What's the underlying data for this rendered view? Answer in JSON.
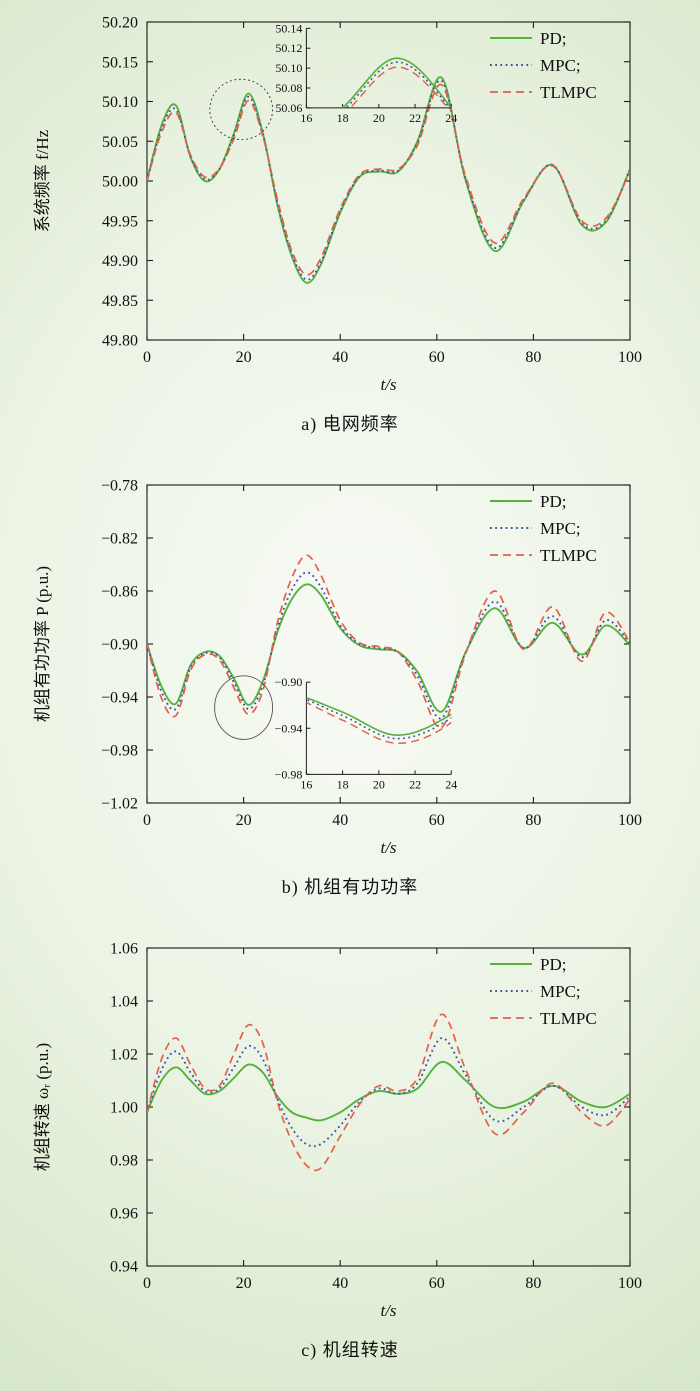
{
  "page": {
    "background_edge": "#c6dcb3",
    "background_center": "#f7faf4",
    "axis_color": "#1a1a1a",
    "text_color": "#111111"
  },
  "chart_data": [
    {
      "type": "line",
      "id": "a",
      "caption": "a) 电网频率",
      "xlabel": "t/s",
      "ylabel": "系统频率 f/Hz",
      "xlim": [
        0,
        100
      ],
      "ylim": [
        49.8,
        50.2
      ],
      "xticks": [
        0,
        20,
        40,
        60,
        80,
        100
      ],
      "yticks": [
        49.8,
        49.85,
        49.9,
        49.95,
        50.0,
        50.05,
        50.1,
        50.15,
        50.2
      ],
      "tick_decimals": 2,
      "grid": false,
      "legend_position": "top-right",
      "x": [
        0,
        3,
        6,
        9,
        12,
        15,
        18,
        21,
        24,
        27,
        30,
        33,
        36,
        40,
        44,
        48,
        52,
        56,
        61,
        66,
        72,
        78,
        84,
        90,
        95,
        100
      ],
      "series": [
        {
          "name": "PD",
          "label": "PD;",
          "color": "#56b23c",
          "dash": "solid",
          "values": [
            50.0,
            50.07,
            50.095,
            50.03,
            50.0,
            50.015,
            50.06,
            50.11,
            50.06,
            49.97,
            49.905,
            49.872,
            49.895,
            49.96,
            50.005,
            50.012,
            50.012,
            50.05,
            50.13,
            50.0,
            49.912,
            49.975,
            50.02,
            49.945,
            49.948,
            50.015
          ]
        },
        {
          "name": "MPC",
          "label": "MPC;",
          "color": "#3a53a4",
          "dash": "dotted",
          "values": [
            50.0,
            50.066,
            50.09,
            50.031,
            50.002,
            50.015,
            50.057,
            50.106,
            50.058,
            49.973,
            49.908,
            49.876,
            49.898,
            49.962,
            50.006,
            50.013,
            50.013,
            50.048,
            50.126,
            50.002,
            49.916,
            49.976,
            50.02,
            49.947,
            49.95,
            50.014
          ]
        },
        {
          "name": "TLMPC",
          "label": "TLMPC",
          "color": "#e2604c",
          "dash": "dashed",
          "values": [
            50.0,
            50.061,
            50.086,
            50.033,
            50.005,
            50.016,
            50.053,
            50.101,
            50.056,
            49.977,
            49.912,
            49.882,
            49.903,
            49.965,
            50.008,
            50.015,
            50.015,
            50.045,
            50.121,
            50.005,
            49.922,
            49.978,
            50.019,
            49.95,
            49.953,
            50.012
          ]
        }
      ],
      "inset": {
        "rect": [
          0.33,
          0.02,
          0.3,
          0.25
        ],
        "xlim": [
          16,
          24
        ],
        "ylim": [
          50.06,
          50.14
        ],
        "xticks": [
          16,
          18,
          20,
          22,
          24
        ],
        "yticks": [
          50.06,
          50.08,
          50.1,
          50.12,
          50.14
        ],
        "tick_decimals": 2
      },
      "annotation_ellipse": {
        "cx": 19.5,
        "cy": 50.09,
        "rx": 6.5,
        "ry": 0.038,
        "style": "dotted",
        "color": "#333333"
      }
    },
    {
      "type": "line",
      "id": "b",
      "caption": "b) 机组有功功率",
      "xlabel": "t/s",
      "ylabel": "机组有功功率 P (p.u.)",
      "xlim": [
        0,
        100
      ],
      "ylim": [
        -1.02,
        -0.78
      ],
      "xticks": [
        0,
        20,
        40,
        60,
        80,
        100
      ],
      "yticks": [
        -1.02,
        -0.98,
        -0.94,
        -0.9,
        -0.86,
        -0.82,
        -0.78
      ],
      "tick_decimals": 2,
      "grid": false,
      "legend_position": "top-right",
      "x": [
        0,
        3,
        6,
        9,
        12,
        15,
        18,
        21,
        24,
        27,
        30,
        33,
        36,
        40,
        44,
        48,
        52,
        56,
        61,
        66,
        72,
        78,
        84,
        90,
        95,
        100
      ],
      "series": [
        {
          "name": "PD",
          "label": "PD;",
          "color": "#56b23c",
          "dash": "solid",
          "values": [
            -0.9,
            -0.932,
            -0.945,
            -0.916,
            -0.906,
            -0.909,
            -0.926,
            -0.946,
            -0.928,
            -0.891,
            -0.866,
            -0.855,
            -0.863,
            -0.888,
            -0.901,
            -0.904,
            -0.906,
            -0.921,
            -0.951,
            -0.906,
            -0.873,
            -0.903,
            -0.884,
            -0.908,
            -0.886,
            -0.901
          ]
        },
        {
          "name": "MPC",
          "label": "MPC;",
          "color": "#3a53a4",
          "dash": "dotted",
          "values": [
            -0.9,
            -0.936,
            -0.949,
            -0.918,
            -0.907,
            -0.91,
            -0.929,
            -0.949,
            -0.931,
            -0.888,
            -0.859,
            -0.846,
            -0.857,
            -0.886,
            -0.9,
            -0.903,
            -0.906,
            -0.924,
            -0.956,
            -0.906,
            -0.868,
            -0.903,
            -0.879,
            -0.91,
            -0.882,
            -0.9
          ]
        },
        {
          "name": "TLMPC",
          "label": "TLMPC",
          "color": "#e2604c",
          "dash": "dashed",
          "values": [
            -0.9,
            -0.941,
            -0.954,
            -0.92,
            -0.908,
            -0.912,
            -0.933,
            -0.953,
            -0.935,
            -0.884,
            -0.85,
            -0.833,
            -0.848,
            -0.882,
            -0.899,
            -0.902,
            -0.906,
            -0.928,
            -0.963,
            -0.907,
            -0.86,
            -0.904,
            -0.872,
            -0.913,
            -0.876,
            -0.899
          ]
        }
      ],
      "inset": {
        "rect": [
          0.33,
          0.62,
          0.3,
          0.29
        ],
        "xlim": [
          16,
          24
        ],
        "ylim": [
          -0.98,
          -0.9
        ],
        "xticks": [
          16,
          18,
          20,
          22,
          24
        ],
        "yticks": [
          -0.9,
          -0.94,
          -0.98
        ],
        "tick_decimals": 2
      },
      "annotation_ellipse": {
        "cx": 20.0,
        "cy": -0.948,
        "rx": 6.0,
        "ry": 0.024,
        "style": "solid",
        "color": "#555555"
      }
    },
    {
      "type": "line",
      "id": "c",
      "caption": "c) 机组转速",
      "xlabel": "t/s",
      "ylabel": "机组转速 ωᵣ (p.u.)",
      "xlim": [
        0,
        100
      ],
      "ylim": [
        0.94,
        1.06
      ],
      "xticks": [
        0,
        20,
        40,
        60,
        80,
        100
      ],
      "yticks": [
        0.94,
        0.96,
        0.98,
        1.0,
        1.02,
        1.04,
        1.06
      ],
      "tick_decimals": 2,
      "grid": false,
      "legend_position": "top-right",
      "x": [
        0,
        3,
        6,
        9,
        12,
        15,
        18,
        21,
        24,
        27,
        30,
        33,
        36,
        40,
        44,
        48,
        52,
        56,
        61,
        66,
        72,
        78,
        84,
        90,
        95,
        100
      ],
      "series": [
        {
          "name": "PD",
          "label": "PD;",
          "color": "#56b23c",
          "dash": "solid",
          "values": [
            0.998,
            1.01,
            1.015,
            1.01,
            1.005,
            1.006,
            1.011,
            1.016,
            1.013,
            1.004,
            0.998,
            0.996,
            0.995,
            0.998,
            1.003,
            1.006,
            1.005,
            1.007,
            1.017,
            1.01,
            1.0,
            1.002,
            1.008,
            1.002,
            1.0,
            1.005
          ]
        },
        {
          "name": "MPC",
          "label": "MPC;",
          "color": "#3a53a4",
          "dash": "dotted",
          "values": [
            0.998,
            1.014,
            1.021,
            1.013,
            1.006,
            1.007,
            1.015,
            1.023,
            1.018,
            1.003,
            0.992,
            0.986,
            0.986,
            0.993,
            1.002,
            1.007,
            1.005,
            1.009,
            1.026,
            1.012,
            0.995,
            1.0,
            1.008,
            1.0,
            0.997,
            1.004
          ]
        },
        {
          "name": "TLMPC",
          "label": "TLMPC",
          "color": "#e2604c",
          "dash": "dashed",
          "values": [
            0.998,
            1.018,
            1.026,
            1.016,
            1.007,
            1.008,
            1.02,
            1.031,
            1.024,
            1.002,
            0.987,
            0.978,
            0.977,
            0.989,
            1.001,
            1.008,
            1.006,
            1.011,
            1.035,
            1.014,
            0.99,
            0.998,
            1.009,
            0.998,
            0.993,
            1.003
          ]
        }
      ],
      "inset": null,
      "annotation_ellipse": null
    }
  ]
}
